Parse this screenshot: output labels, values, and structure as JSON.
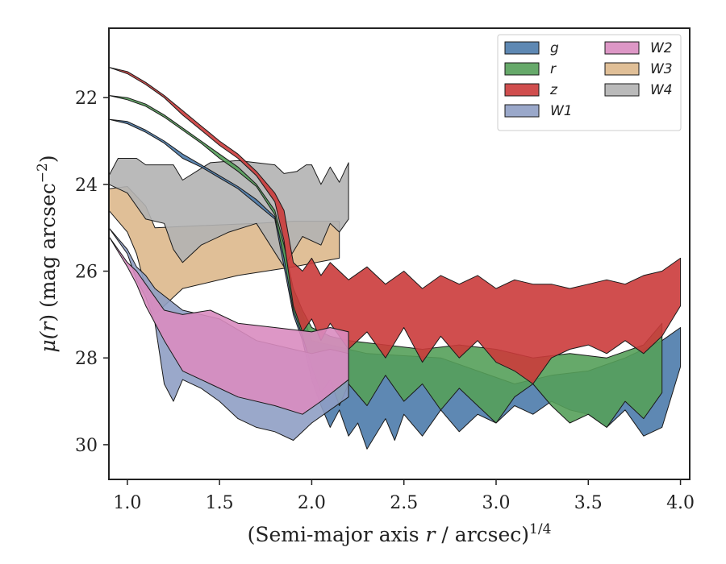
{
  "chart_data": {
    "type": "area",
    "xlabel": "(Semi-major axis r / arcsec)^{1/4}",
    "ylabel": "μ(r) (mag arcsec^{−2})",
    "xlim": [
      0.9,
      4.05
    ],
    "ylim": [
      30.8,
      20.4
    ],
    "y_inverted": true,
    "grid": false,
    "legend_placement": "top-right",
    "legend_columns": 2,
    "x_ticks": [
      "1.0",
      "1.5",
      "2.0",
      "2.5",
      "3.0",
      "3.5",
      "4.0"
    ],
    "y_ticks": [
      "22",
      "24",
      "26",
      "28",
      "30"
    ],
    "series": [
      {
        "name": "W3",
        "color": "#ddb88c",
        "upper": [
          [
            0.9,
            24.1
          ],
          [
            1.0,
            24.05
          ],
          [
            1.1,
            24.5
          ],
          [
            1.15,
            25.0
          ],
          [
            1.4,
            24.95
          ],
          [
            1.7,
            24.9
          ],
          [
            1.9,
            24.85
          ],
          [
            2.15,
            24.85
          ]
        ],
        "lower": [
          [
            0.9,
            24.6
          ],
          [
            1.0,
            25.1
          ],
          [
            1.05,
            25.6
          ],
          [
            1.1,
            26.4
          ],
          [
            1.15,
            27.0
          ],
          [
            1.3,
            26.4
          ],
          [
            1.6,
            26.1
          ],
          [
            1.9,
            25.9
          ],
          [
            2.15,
            25.7
          ]
        ]
      },
      {
        "name": "W4",
        "color": "#b3b3b3",
        "upper": [
          [
            0.9,
            23.8
          ],
          [
            0.95,
            23.4
          ],
          [
            1.05,
            23.4
          ],
          [
            1.1,
            23.55
          ],
          [
            1.25,
            23.55
          ],
          [
            1.3,
            23.9
          ],
          [
            1.45,
            23.5
          ],
          [
            1.6,
            23.45
          ],
          [
            1.8,
            23.55
          ],
          [
            1.85,
            23.75
          ],
          [
            1.92,
            23.7
          ],
          [
            1.97,
            23.55
          ],
          [
            2.0,
            23.55
          ],
          [
            2.05,
            24.0
          ],
          [
            2.1,
            23.6
          ],
          [
            2.15,
            23.95
          ],
          [
            2.2,
            23.5
          ]
        ],
        "lower": [
          [
            0.9,
            24.0
          ],
          [
            1.0,
            24.2
          ],
          [
            1.1,
            24.8
          ],
          [
            1.2,
            24.9
          ],
          [
            1.25,
            25.5
          ],
          [
            1.3,
            25.8
          ],
          [
            1.4,
            25.4
          ],
          [
            1.55,
            25.1
          ],
          [
            1.7,
            24.9
          ],
          [
            1.85,
            25.9
          ],
          [
            1.95,
            25.2
          ],
          [
            2.05,
            25.4
          ],
          [
            2.1,
            24.9
          ],
          [
            2.15,
            25.1
          ],
          [
            2.2,
            24.8
          ]
        ]
      },
      {
        "name": "g",
        "color": "#4c7bab",
        "upper": [
          [
            0.9,
            22.5
          ],
          [
            1.0,
            22.55
          ],
          [
            1.1,
            22.75
          ],
          [
            1.2,
            23.0
          ],
          [
            1.3,
            23.3
          ],
          [
            1.4,
            23.55
          ],
          [
            1.5,
            23.8
          ],
          [
            1.6,
            24.05
          ],
          [
            1.7,
            24.35
          ],
          [
            1.8,
            24.75
          ],
          [
            1.85,
            25.5
          ],
          [
            1.9,
            26.5
          ],
          [
            1.95,
            27.0
          ],
          [
            2.0,
            27.6
          ],
          [
            2.1,
            27.7
          ],
          [
            2.2,
            27.8
          ],
          [
            2.3,
            27.9
          ],
          [
            2.5,
            27.95
          ],
          [
            2.7,
            28.0
          ],
          [
            2.9,
            28.3
          ],
          [
            3.1,
            28.6
          ],
          [
            3.3,
            28.4
          ],
          [
            3.5,
            28.3
          ],
          [
            3.7,
            28.0
          ],
          [
            3.9,
            27.6
          ],
          [
            4.0,
            27.3
          ]
        ],
        "lower": [
          [
            0.9,
            22.5
          ],
          [
            1.0,
            22.6
          ],
          [
            1.1,
            22.8
          ],
          [
            1.2,
            23.05
          ],
          [
            1.3,
            23.4
          ],
          [
            1.4,
            23.6
          ],
          [
            1.5,
            23.85
          ],
          [
            1.6,
            24.1
          ],
          [
            1.7,
            24.45
          ],
          [
            1.8,
            24.8
          ],
          [
            1.85,
            25.9
          ],
          [
            1.9,
            27.0
          ],
          [
            1.95,
            27.6
          ],
          [
            2.0,
            28.5
          ],
          [
            2.05,
            29.1
          ],
          [
            2.1,
            29.6
          ],
          [
            2.15,
            29.2
          ],
          [
            2.2,
            29.8
          ],
          [
            2.25,
            29.5
          ],
          [
            2.3,
            30.1
          ],
          [
            2.4,
            29.4
          ],
          [
            2.45,
            29.9
          ],
          [
            2.5,
            29.3
          ],
          [
            2.6,
            29.8
          ],
          [
            2.7,
            29.2
          ],
          [
            2.8,
            29.7
          ],
          [
            2.9,
            29.3
          ],
          [
            3.0,
            29.5
          ],
          [
            3.1,
            29.1
          ],
          [
            3.2,
            29.3
          ],
          [
            3.3,
            29.0
          ],
          [
            3.4,
            29.2
          ],
          [
            3.5,
            29.3
          ],
          [
            3.6,
            29.6
          ],
          [
            3.7,
            29.2
          ],
          [
            3.8,
            29.8
          ],
          [
            3.9,
            29.6
          ],
          [
            4.0,
            28.2
          ]
        ]
      },
      {
        "name": "r",
        "color": "#55a05a",
        "upper": [
          [
            0.9,
            21.95
          ],
          [
            1.0,
            22.0
          ],
          [
            1.1,
            22.15
          ],
          [
            1.2,
            22.4
          ],
          [
            1.3,
            22.7
          ],
          [
            1.4,
            23.0
          ],
          [
            1.5,
            23.3
          ],
          [
            1.6,
            23.6
          ],
          [
            1.7,
            24.0
          ],
          [
            1.8,
            24.6
          ],
          [
            1.85,
            25.4
          ],
          [
            1.9,
            26.4
          ],
          [
            1.95,
            26.9
          ],
          [
            2.0,
            27.3
          ],
          [
            2.1,
            27.5
          ],
          [
            2.2,
            27.6
          ],
          [
            2.4,
            27.7
          ],
          [
            2.6,
            27.8
          ],
          [
            2.8,
            27.7
          ],
          [
            3.0,
            27.8
          ],
          [
            3.2,
            28.0
          ],
          [
            3.4,
            27.9
          ],
          [
            3.6,
            28.0
          ],
          [
            3.8,
            27.7
          ],
          [
            3.9,
            27.2
          ]
        ],
        "lower": [
          [
            0.9,
            21.95
          ],
          [
            1.0,
            22.05
          ],
          [
            1.1,
            22.2
          ],
          [
            1.2,
            22.45
          ],
          [
            1.3,
            22.75
          ],
          [
            1.4,
            23.05
          ],
          [
            1.5,
            23.4
          ],
          [
            1.6,
            23.7
          ],
          [
            1.7,
            24.05
          ],
          [
            1.8,
            24.7
          ],
          [
            1.85,
            25.7
          ],
          [
            1.9,
            26.9
          ],
          [
            1.95,
            27.5
          ],
          [
            2.0,
            28.2
          ],
          [
            2.05,
            28.8
          ],
          [
            2.1,
            28.5
          ],
          [
            2.15,
            29.1
          ],
          [
            2.2,
            28.6
          ],
          [
            2.3,
            29.1
          ],
          [
            2.4,
            28.4
          ],
          [
            2.5,
            29.0
          ],
          [
            2.6,
            28.6
          ],
          [
            2.7,
            29.2
          ],
          [
            2.8,
            28.7
          ],
          [
            2.9,
            29.1
          ],
          [
            3.0,
            29.5
          ],
          [
            3.1,
            28.9
          ],
          [
            3.2,
            28.6
          ],
          [
            3.3,
            29.1
          ],
          [
            3.4,
            29.5
          ],
          [
            3.5,
            29.3
          ],
          [
            3.6,
            29.6
          ],
          [
            3.7,
            29.0
          ],
          [
            3.8,
            29.4
          ],
          [
            3.9,
            28.8
          ]
        ]
      },
      {
        "name": "z",
        "color": "#cb3b3b",
        "upper": [
          [
            0.9,
            21.3
          ],
          [
            1.0,
            21.4
          ],
          [
            1.1,
            21.65
          ],
          [
            1.2,
            21.95
          ],
          [
            1.3,
            22.3
          ],
          [
            1.4,
            22.65
          ],
          [
            1.5,
            23.0
          ],
          [
            1.6,
            23.3
          ],
          [
            1.7,
            23.7
          ],
          [
            1.8,
            24.2
          ],
          [
            1.85,
            24.6
          ],
          [
            1.9,
            25.8
          ],
          [
            1.95,
            26.0
          ],
          [
            2.0,
            25.7
          ],
          [
            2.05,
            26.1
          ],
          [
            2.1,
            25.8
          ],
          [
            2.2,
            26.2
          ],
          [
            2.3,
            25.9
          ],
          [
            2.4,
            26.3
          ],
          [
            2.5,
            26.0
          ],
          [
            2.6,
            26.4
          ],
          [
            2.7,
            26.1
          ],
          [
            2.8,
            26.3
          ],
          [
            2.9,
            26.1
          ],
          [
            3.0,
            26.4
          ],
          [
            3.1,
            26.2
          ],
          [
            3.2,
            26.3
          ],
          [
            3.3,
            26.3
          ],
          [
            3.4,
            26.4
          ],
          [
            3.5,
            26.3
          ],
          [
            3.6,
            26.2
          ],
          [
            3.7,
            26.3
          ],
          [
            3.8,
            26.1
          ],
          [
            3.9,
            26.0
          ],
          [
            4.0,
            25.7
          ]
        ],
        "lower": [
          [
            0.9,
            21.3
          ],
          [
            1.0,
            21.45
          ],
          [
            1.1,
            21.7
          ],
          [
            1.2,
            22.0
          ],
          [
            1.3,
            22.4
          ],
          [
            1.4,
            22.75
          ],
          [
            1.5,
            23.1
          ],
          [
            1.6,
            23.4
          ],
          [
            1.7,
            23.8
          ],
          [
            1.8,
            24.4
          ],
          [
            1.85,
            25.3
          ],
          [
            1.9,
            26.8
          ],
          [
            1.95,
            27.4
          ],
          [
            2.0,
            27.1
          ],
          [
            2.05,
            27.6
          ],
          [
            2.1,
            27.2
          ],
          [
            2.2,
            27.8
          ],
          [
            2.3,
            27.4
          ],
          [
            2.4,
            28.0
          ],
          [
            2.5,
            27.3
          ],
          [
            2.6,
            28.1
          ],
          [
            2.7,
            27.5
          ],
          [
            2.8,
            28.0
          ],
          [
            2.9,
            27.6
          ],
          [
            3.0,
            28.1
          ],
          [
            3.1,
            28.3
          ],
          [
            3.2,
            28.6
          ],
          [
            3.3,
            28.0
          ],
          [
            3.4,
            27.8
          ],
          [
            3.5,
            27.7
          ],
          [
            3.6,
            27.9
          ],
          [
            3.7,
            27.6
          ],
          [
            3.8,
            27.9
          ],
          [
            3.9,
            27.5
          ],
          [
            4.0,
            26.8
          ]
        ]
      },
      {
        "name": "W1",
        "color": "#8f9fc4",
        "upper": [
          [
            0.9,
            25.0
          ],
          [
            1.0,
            25.5
          ],
          [
            1.05,
            25.9
          ],
          [
            1.1,
            26.1
          ],
          [
            1.15,
            26.4
          ],
          [
            1.3,
            26.9
          ],
          [
            1.5,
            27.1
          ],
          [
            1.7,
            27.6
          ],
          [
            1.9,
            27.8
          ],
          [
            2.0,
            27.9
          ],
          [
            2.1,
            27.8
          ],
          [
            2.2,
            27.9
          ]
        ],
        "lower": [
          [
            0.9,
            25.0
          ],
          [
            1.0,
            25.6
          ],
          [
            1.05,
            26.2
          ],
          [
            1.1,
            26.6
          ],
          [
            1.15,
            27.2
          ],
          [
            1.2,
            28.6
          ],
          [
            1.25,
            29.0
          ],
          [
            1.3,
            28.5
          ],
          [
            1.4,
            28.7
          ],
          [
            1.5,
            29.0
          ],
          [
            1.6,
            29.4
          ],
          [
            1.7,
            29.6
          ],
          [
            1.8,
            29.7
          ],
          [
            1.9,
            29.9
          ],
          [
            2.0,
            29.5
          ],
          [
            2.1,
            29.2
          ],
          [
            2.2,
            28.9
          ]
        ]
      },
      {
        "name": "W2",
        "color": "#d98cc0",
        "upper": [
          [
            0.9,
            25.2
          ],
          [
            1.0,
            25.8
          ],
          [
            1.05,
            26.0
          ],
          [
            1.1,
            26.3
          ],
          [
            1.2,
            26.9
          ],
          [
            1.3,
            27.0
          ],
          [
            1.45,
            26.9
          ],
          [
            1.6,
            27.2
          ],
          [
            1.8,
            27.3
          ],
          [
            2.0,
            27.4
          ],
          [
            2.1,
            27.3
          ],
          [
            2.2,
            27.4
          ]
        ],
        "lower": [
          [
            0.9,
            25.2
          ],
          [
            1.0,
            25.9
          ],
          [
            1.05,
            26.3
          ],
          [
            1.1,
            26.8
          ],
          [
            1.2,
            27.6
          ],
          [
            1.3,
            28.3
          ],
          [
            1.45,
            28.6
          ],
          [
            1.6,
            28.9
          ],
          [
            1.8,
            29.1
          ],
          [
            1.95,
            29.3
          ],
          [
            2.05,
            29.0
          ],
          [
            2.2,
            28.5
          ]
        ]
      }
    ]
  },
  "legend": {
    "col1": [
      "g",
      "r",
      "z",
      "W1"
    ],
    "col2": [
      "W2",
      "W3",
      "W4"
    ]
  },
  "axes": {
    "x_label_main": "(Semi-major axis ",
    "x_label_var": "r",
    "x_label_tail": " / arcsec)",
    "x_label_exp": "1/4",
    "y_label_main": "μ(",
    "y_label_var": "r",
    "y_label_tail": ") (mag arcsec",
    "y_label_exp": "−2",
    "y_label_close": ")"
  }
}
